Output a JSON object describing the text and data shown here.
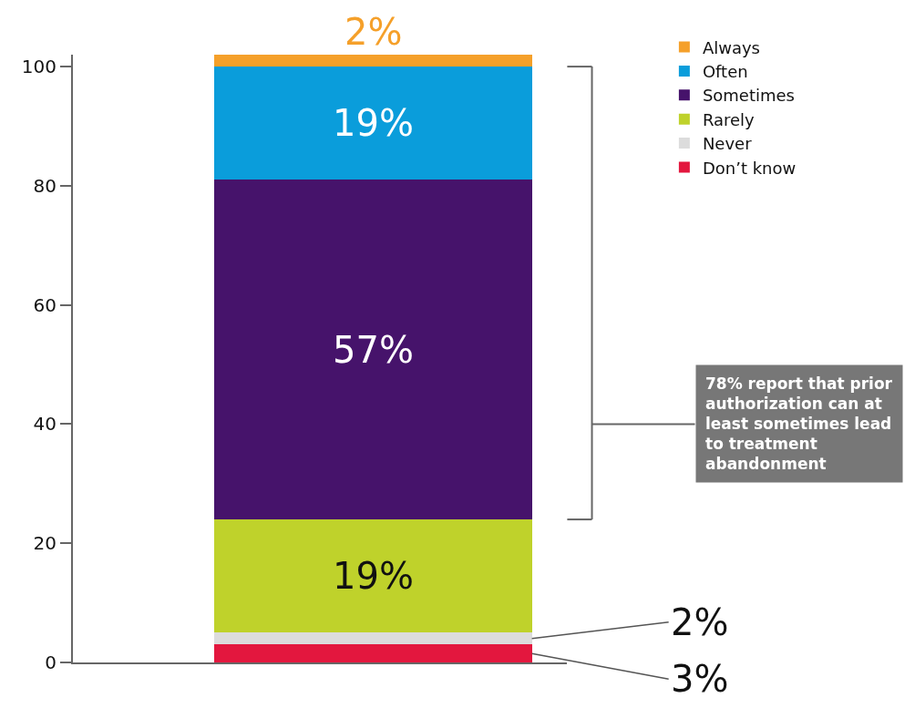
{
  "chart_data": {
    "type": "bar",
    "stacked": true,
    "categories": [
      null
    ],
    "ylim": [
      0,
      102
    ],
    "yticks": [
      0,
      20,
      40,
      60,
      80,
      100
    ],
    "grid": false,
    "legend": "top right",
    "series": [
      {
        "name": "Don’t know",
        "color": "#e3173e",
        "values": [
          3
        ],
        "value_labels": [
          "3%"
        ]
      },
      {
        "name": "Never",
        "color": "#dcdcdc",
        "values": [
          2
        ],
        "value_labels": [
          "2%"
        ]
      },
      {
        "name": "Rarely",
        "color": "#bfd22b",
        "values": [
          19
        ],
        "value_labels": [
          "19%"
        ]
      },
      {
        "name": "Sometimes",
        "color": "#46136b",
        "values": [
          57
        ],
        "value_labels": [
          "57%"
        ]
      },
      {
        "name": "Often",
        "color": "#0a9ddb",
        "values": [
          19
        ],
        "value_labels": [
          "19%"
        ]
      },
      {
        "name": "Always",
        "color": "#f5a02a",
        "values": [
          2
        ],
        "value_labels": [
          "2%"
        ]
      }
    ],
    "annotations": [
      "78% report that prior authorization can at least sometimes lead to treatment abandonment"
    ]
  }
}
